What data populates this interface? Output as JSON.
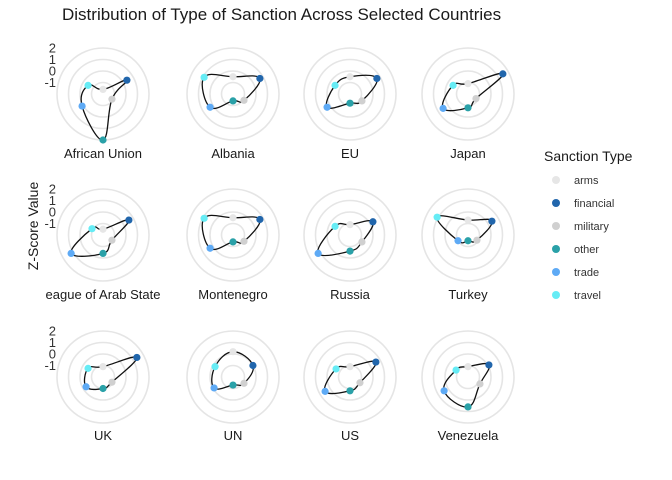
{
  "chart_data": {
    "type": "radar",
    "title": "Distribution of Type of Sanction Across Selected Countries",
    "ylabel": "Z-Score Value",
    "radial_ticks": [
      "2",
      "1",
      "0",
      "-1"
    ],
    "ylim": [
      -2,
      2
    ],
    "legend": {
      "title": "Sanction Type",
      "position": "right",
      "items": [
        {
          "name": "arms",
          "color": "#e6e6e6"
        },
        {
          "name": "financial",
          "color": "#2166ac"
        },
        {
          "name": "military",
          "color": "#d0d0d0"
        },
        {
          "name": "other",
          "color": "#2aa1a8"
        },
        {
          "name": "trade",
          "color": "#5eaaf5"
        },
        {
          "name": "travel",
          "color": "#66ecf5"
        }
      ]
    },
    "categories": [
      "arms",
      "financial",
      "military",
      "other",
      "trade",
      "travel"
    ],
    "panels": [
      {
        "name": "African Union",
        "values": [
          -1.6,
          0.4,
          -1.1,
          2.0,
          0.1,
          -0.5
        ],
        "show_ticks": true
      },
      {
        "name": "Albania",
        "values": [
          -0.5,
          0.7,
          -0.9,
          -1.4,
          0.3,
          0.9
        ],
        "show_ticks": false
      },
      {
        "name": "EU",
        "values": [
          -0.5,
          0.7,
          -0.8,
          -1.2,
          0.3,
          -0.5
        ],
        "show_ticks": false
      },
      {
        "name": "Japan",
        "values": [
          -1.1,
          1.5,
          -1.2,
          -0.8,
          0.5,
          -0.5
        ],
        "show_ticks": false
      },
      {
        "name": "League of Arab States",
        "display": "eague of Arab State",
        "values": [
          -1.5,
          0.6,
          -1.1,
          -0.4,
          1.2,
          -0.9
        ],
        "show_ticks": true
      },
      {
        "name": "Montenegro",
        "values": [
          -0.5,
          0.7,
          -0.9,
          -1.4,
          0.3,
          0.9
        ],
        "show_ticks": false
      },
      {
        "name": "Russia",
        "values": [
          -1.1,
          0.3,
          -0.8,
          -0.6,
          1.2,
          -0.5
        ],
        "show_ticks": false
      },
      {
        "name": "Turkey",
        "values": [
          -0.7,
          0.4,
          -1.1,
          -1.5,
          -1.0,
          1.1
        ],
        "show_ticks": false
      },
      {
        "name": "UK",
        "values": [
          -1.1,
          1.4,
          -1.1,
          -1.0,
          -0.3,
          -0.5
        ],
        "show_ticks": true
      },
      {
        "name": "UN",
        "values": [
          0.2,
          0.0,
          -0.9,
          -1.3,
          -0.1,
          -0.2
        ],
        "show_ticks": false
      },
      {
        "name": "US",
        "values": [
          -1.1,
          0.6,
          -1.0,
          -0.8,
          0.5,
          -0.6
        ],
        "show_ticks": false
      },
      {
        "name": "Venezuela",
        "values": [
          -1.1,
          0.1,
          -0.8,
          0.6,
          0.4,
          -0.8
        ],
        "show_ticks": false
      }
    ]
  }
}
